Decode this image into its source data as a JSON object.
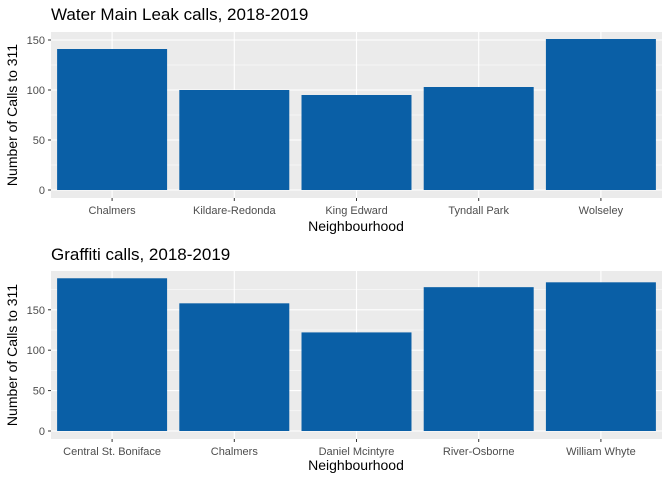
{
  "colors": {
    "panel_background": "#ebebeb",
    "grid_major": "#ffffff",
    "bar_fill": "#0a5fa6",
    "tick_color": "#333333"
  },
  "chart_data": [
    {
      "type": "bar",
      "title": "Water Main Leak calls, 2018-2019",
      "xlabel": "Neighbourhood",
      "ylabel": "Number of Calls to 311",
      "categories": [
        "Chalmers",
        "Kildare-Redonda",
        "King Edward",
        "Tyndall Park",
        "Wolseley"
      ],
      "values": [
        141,
        100,
        95,
        103,
        151
      ],
      "ylim": [
        0,
        158
      ],
      "yticks": [
        0,
        50,
        100,
        150
      ],
      "grid": true
    },
    {
      "type": "bar",
      "title": "Graffiti calls, 2018-2019",
      "xlabel": "Neighbourhood",
      "ylabel": "Number of Calls to 311",
      "categories": [
        "Central St. Boniface",
        "Chalmers",
        "Daniel Mcintyre",
        "River-Osborne",
        "William Whyte"
      ],
      "values": [
        189,
        158,
        122,
        178,
        184
      ],
      "ylim": [
        0,
        198
      ],
      "yticks": [
        0,
        50,
        100,
        150
      ],
      "grid": true
    }
  ]
}
